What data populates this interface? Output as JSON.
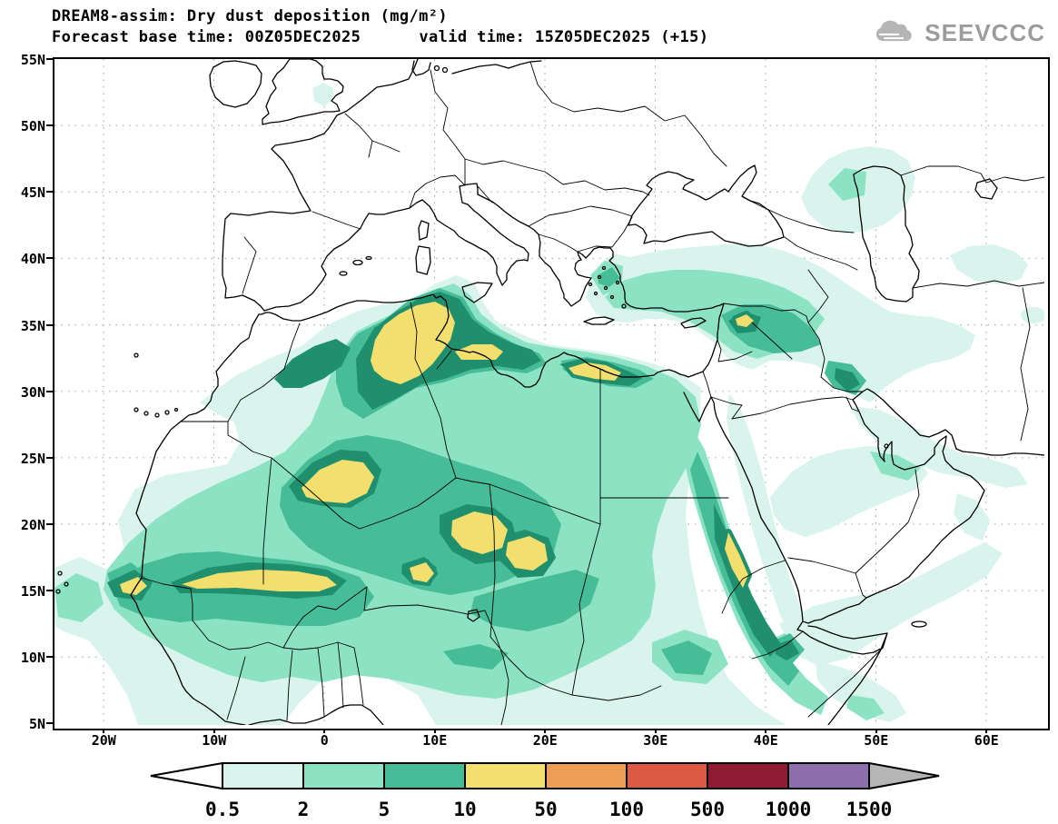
{
  "header": {
    "title": "DREAM8-assim: Dry dust deposition (mg/m²)",
    "forecast_base": "Forecast base time: 00Z05DEC2025",
    "valid_time": "valid time: 15Z05DEC2025 (+15)"
  },
  "logo": {
    "text": "SEEVCCC"
  },
  "axes": {
    "y_labels": [
      "55N",
      "50N",
      "45N",
      "40N",
      "35N",
      "30N",
      "25N",
      "20N",
      "15N",
      "10N",
      "5N"
    ],
    "x_labels": [
      "20W",
      "10W",
      "0",
      "10E",
      "20E",
      "30E",
      "40E",
      "50E",
      "60E"
    ]
  },
  "legend": {
    "boundaries": [
      "0.5",
      "2",
      "5",
      "10",
      "50",
      "100",
      "500",
      "1000",
      "1500"
    ],
    "colors": [
      "#d9f4ec",
      "#8ce3c4",
      "#46bd97",
      "#f2df6e",
      "#ee9d57",
      "#dd5a42",
      "#8e1b33",
      "#8e6fae"
    ],
    "below_color": "#ffffff",
    "above_color": "#b5b5b5",
    "contour_ring_color": "#1f8f6d",
    "units": "mg/m²"
  },
  "chart_data": {
    "type": "heatmap",
    "subtype": "filled-contour geographic map",
    "title": "DREAM8-assim: Dry dust deposition (mg/m²)",
    "units": "mg/m²",
    "model": "DREAM8-assim",
    "base_time": "00Z05DEC2025",
    "valid_time": "15Z05DEC2025",
    "forecast_hour": "+15",
    "lon_range": [
      "24.5W",
      "65E"
    ],
    "lat_range": [
      "5N",
      "55N"
    ],
    "contour_levels_mg_m2": [
      0.5,
      2,
      5,
      10,
      50,
      100,
      500,
      1000,
      1500
    ],
    "grid": "dotted, 10 deg lon x 5 deg lat",
    "legend_position": "bottom, horizontal colorbar with out-of-range arrows",
    "hotspots": [
      {
        "region": "NE Algeria / Tunisia / NW Libya coast",
        "approx_lon": 8,
        "approx_lat": 33,
        "level": "10-50"
      },
      {
        "region": "NW Egypt Mediterranean coast",
        "approx_lon": 22,
        "approx_lat": 31,
        "level": "10-50"
      },
      {
        "region": "Central Algeria (Ahaggar NW)",
        "approx_lon": 0,
        "approx_lat": 23,
        "level": "10-50"
      },
      {
        "region": "NW Niger / SE Algeria (Air)",
        "approx_lon": 8,
        "approx_lat": 20,
        "level": "10-50"
      },
      {
        "region": "SW Libya / NE Niger",
        "approx_lon": 13,
        "approx_lat": 18.5,
        "level": "10-50"
      },
      {
        "region": "Mali Sahel band (Mopti-Gao)",
        "approx_lon": -4,
        "approx_lat": 15,
        "level": "10-50"
      },
      {
        "region": "West Senegal coast",
        "approx_lon": -16,
        "approx_lat": 15,
        "level": "10-50"
      },
      {
        "region": "Sudan Red Sea coast",
        "approx_lon": 37,
        "approx_lat": 19,
        "level": "10-50"
      },
      {
        "region": "West Syria",
        "approx_lon": 37.5,
        "approx_lat": 35,
        "level": "10-50"
      },
      {
        "region": "Broad Sahara / Sahel belt",
        "approx_lon": 5,
        "approx_lat": 20,
        "level": "2-10"
      },
      {
        "region": "Red Sea rift full length",
        "approx_lon": 36,
        "approx_lat": 20,
        "level": "5-10"
      },
      {
        "region": "Aegean Sea / W Turkey",
        "approx_lon": 25,
        "approx_lat": 38,
        "level": "2-5"
      },
      {
        "region": "Anatolia to NW Iran band",
        "approx_lon": 35,
        "approx_lat": 39,
        "level": "0.5-2"
      },
      {
        "region": "N Caspian / Kazakh steppe",
        "approx_lon": 48,
        "approx_lat": 45,
        "level": "0.5-2"
      },
      {
        "region": "Persian Gulf coasts",
        "approx_lon": 52,
        "approx_lat": 27,
        "level": "0.5-2"
      },
      {
        "region": "S Arabia / Yemen / Oman",
        "approx_lon": 48,
        "approx_lat": 16,
        "level": "0.5-5"
      },
      {
        "region": "Horn of Africa",
        "approx_lon": 46,
        "approx_lat": 10,
        "level": "0.5-5"
      },
      {
        "region": "Atlantic off Senegal",
        "approx_lon": -22,
        "approx_lat": 15,
        "level": "0.5-5"
      },
      {
        "region": "S Britain",
        "approx_lon": -1,
        "approx_lat": 52,
        "level": "0.5-2"
      }
    ]
  }
}
